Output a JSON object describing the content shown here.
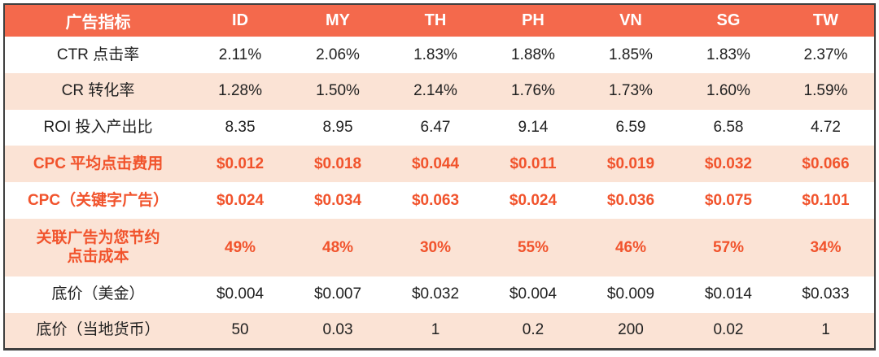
{
  "chart_data": {
    "type": "table",
    "header": {
      "metric_column_label": "广告指标",
      "country_columns": [
        "ID",
        "MY",
        "TH",
        "PH",
        "VN",
        "SG",
        "TW"
      ]
    },
    "rows": [
      {
        "label": "CTR 点击率",
        "values": [
          "2.11%",
          "2.06%",
          "1.83%",
          "1.88%",
          "1.85%",
          "1.83%",
          "2.37%"
        ],
        "emphasis": false
      },
      {
        "label": "CR 转化率",
        "values": [
          "1.28%",
          "1.50%",
          "2.14%",
          "1.76%",
          "1.73%",
          "1.60%",
          "1.59%"
        ],
        "emphasis": false
      },
      {
        "label": "ROI 投入产出比",
        "values": [
          "8.35",
          "8.95",
          "6.47",
          "9.14",
          "6.59",
          "6.58",
          "4.72"
        ],
        "emphasis": false
      },
      {
        "label": "CPC 平均点击费用",
        "values": [
          "$0.012",
          "$0.018",
          "$0.044",
          "$0.011",
          "$0.019",
          "$0.032",
          "$0.066"
        ],
        "emphasis": true
      },
      {
        "label": "CPC（关键字广告）",
        "values": [
          "$0.024",
          "$0.034",
          "$0.063",
          "$0.024",
          "$0.036",
          "$0.075",
          "$0.101"
        ],
        "emphasis": true
      },
      {
        "label": "关联广告为您节约\n点击成本",
        "values": [
          "49%",
          "48%",
          "30%",
          "55%",
          "46%",
          "57%",
          "34%"
        ],
        "emphasis": true
      },
      {
        "label": "底价（美金）",
        "values": [
          "$0.004",
          "$0.007",
          "$0.032",
          "$0.004",
          "$0.009",
          "$0.014",
          "$0.033"
        ],
        "emphasis": false
      },
      {
        "label": "底价（当地货币）",
        "values": [
          "50",
          "0.03",
          "1",
          "0.2",
          "200",
          "0.02",
          "1"
        ],
        "emphasis": false
      }
    ]
  },
  "colors": {
    "header_bg": "#f4694c",
    "header_text": "#ffffff",
    "highlight_row_bg": "#fbe3d5",
    "emphasis_text": "#f1532c",
    "body_text": "#212121",
    "border": "#3f3f3f"
  }
}
